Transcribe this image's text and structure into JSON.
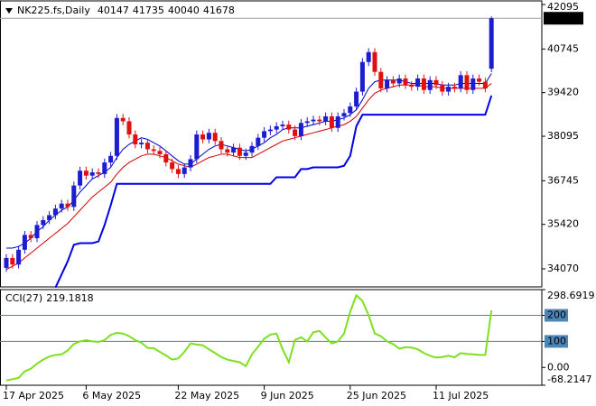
{
  "chart_data": [
    {
      "type": "candlestick",
      "title": "NK225.fs,Daily",
      "categories": [
        "17 Apr 2025",
        null,
        null,
        null,
        null,
        null,
        null,
        null,
        null,
        null,
        null,
        null,
        null,
        "6 May 2025",
        null,
        null,
        null,
        null,
        null,
        null,
        null,
        null,
        null,
        null,
        null,
        null,
        null,
        null,
        "22 May 2025",
        null,
        null,
        null,
        null,
        null,
        null,
        null,
        null,
        null,
        null,
        null,
        null,
        null,
        "9 Jun 2025",
        null,
        null,
        null,
        null,
        null,
        null,
        null,
        null,
        null,
        null,
        null,
        null,
        null,
        "25 Jun 2025",
        null,
        null,
        null,
        null,
        null,
        null,
        null,
        null,
        null,
        null,
        null,
        null,
        null,
        "11 Jul 2025",
        null,
        null,
        null,
        null,
        null,
        null,
        null,
        null,
        null
      ],
      "ohlc": [
        [
          34100,
          34520,
          33980,
          34400
        ],
        [
          34400,
          34520,
          34080,
          34200
        ],
        [
          34200,
          34770,
          34080,
          34650
        ],
        [
          34650,
          35220,
          34530,
          35100
        ],
        [
          35100,
          35220,
          34880,
          35000
        ],
        [
          35000,
          35520,
          34880,
          35400
        ],
        [
          35400,
          35670,
          35280,
          35550
        ],
        [
          35550,
          35820,
          35430,
          35700
        ],
        [
          35700,
          36020,
          35580,
          35900
        ],
        [
          35900,
          36170,
          35780,
          36050
        ],
        [
          36050,
          36170,
          35830,
          35950
        ],
        [
          35950,
          36720,
          35830,
          36600
        ],
        [
          36600,
          37170,
          36480,
          37050
        ],
        [
          37050,
          37170,
          36780,
          36900
        ],
        [
          36900,
          37120,
          36780,
          37000
        ],
        [
          37000,
          37120,
          36830,
          36950
        ],
        [
          36950,
          37420,
          36830,
          37300
        ],
        [
          37300,
          37620,
          37180,
          37500
        ],
        [
          37500,
          38770,
          37380,
          38650
        ],
        [
          38650,
          38770,
          38430,
          38550
        ],
        [
          38550,
          38670,
          38030,
          38150
        ],
        [
          38150,
          38270,
          37730,
          37850
        ],
        [
          37850,
          38020,
          37730,
          37900
        ],
        [
          37900,
          38020,
          37580,
          37700
        ],
        [
          37700,
          37820,
          37530,
          37650
        ],
        [
          37650,
          37770,
          37430,
          37550
        ],
        [
          37550,
          37670,
          37180,
          37300
        ],
        [
          37300,
          37420,
          36980,
          37100
        ],
        [
          37100,
          37220,
          36830,
          36950
        ],
        [
          36950,
          37270,
          36830,
          37150
        ],
        [
          37150,
          37520,
          37030,
          37400
        ],
        [
          37400,
          38270,
          37280,
          38150
        ],
        [
          38150,
          38270,
          37880,
          38000
        ],
        [
          38000,
          38320,
          37880,
          38200
        ],
        [
          38200,
          38320,
          37830,
          37950
        ],
        [
          37950,
          38070,
          37580,
          37700
        ],
        [
          37700,
          37820,
          37480,
          37600
        ],
        [
          37600,
          37870,
          37480,
          37750
        ],
        [
          37750,
          37870,
          37380,
          37500
        ],
        [
          37500,
          37720,
          37380,
          37600
        ],
        [
          37600,
          37920,
          37480,
          37800
        ],
        [
          37800,
          38170,
          37680,
          38050
        ],
        [
          38050,
          38370,
          37930,
          38250
        ],
        [
          38250,
          38420,
          38130,
          38300
        ],
        [
          38300,
          38520,
          38180,
          38400
        ],
        [
          38400,
          38570,
          38280,
          38450
        ],
        [
          38450,
          38570,
          38180,
          38300
        ],
        [
          38300,
          38420,
          37980,
          38100
        ],
        [
          38100,
          38620,
          37980,
          38500
        ],
        [
          38500,
          38670,
          38380,
          38550
        ],
        [
          38550,
          38720,
          38430,
          38600
        ],
        [
          38600,
          38720,
          38430,
          38550
        ],
        [
          38550,
          38820,
          38430,
          38700
        ],
        [
          38700,
          38820,
          38230,
          38350
        ],
        [
          38350,
          38820,
          38230,
          38700
        ],
        [
          38700,
          38920,
          38580,
          38800
        ],
        [
          38800,
          39120,
          38680,
          39000
        ],
        [
          39000,
          39570,
          38880,
          39450
        ],
        [
          39450,
          40470,
          39330,
          40350
        ],
        [
          40350,
          40770,
          40230,
          40650
        ],
        [
          40650,
          40770,
          39930,
          40050
        ],
        [
          40050,
          40170,
          39430,
          39550
        ],
        [
          39550,
          39920,
          39430,
          39800
        ],
        [
          39800,
          39920,
          39580,
          39700
        ],
        [
          39700,
          39970,
          39580,
          39850
        ],
        [
          39850,
          39970,
          39530,
          39650
        ],
        [
          39650,
          39770,
          39480,
          39600
        ],
        [
          39600,
          39970,
          39480,
          39850
        ],
        [
          39850,
          39970,
          39380,
          39500
        ],
        [
          39500,
          39920,
          39380,
          39800
        ],
        [
          39800,
          39920,
          39530,
          39650
        ],
        [
          39650,
          39770,
          39330,
          39450
        ],
        [
          39450,
          39720,
          39330,
          39600
        ],
        [
          39600,
          39720,
          39430,
          39550
        ],
        [
          39550,
          40070,
          39430,
          39950
        ],
        [
          39950,
          40070,
          39380,
          39500
        ],
        [
          39500,
          39970,
          39380,
          39850
        ],
        [
          39850,
          39970,
          39630,
          39750
        ],
        [
          39750,
          39870,
          39430,
          39550
        ],
        [
          40147,
          41735,
          40040,
          41678
        ]
      ],
      "up_color": "#1c1cd0",
      "down_color": "#e01010",
      "series": [
        {
          "color": "#0000c8",
          "width": 1,
          "values": [
            34700,
            34700,
            34750,
            34850,
            35000,
            35200,
            35350,
            35550,
            35700,
            35850,
            35950,
            36150,
            36400,
            36600,
            36800,
            36900,
            37000,
            37150,
            37450,
            37700,
            37850,
            37950,
            38050,
            38000,
            37900,
            37800,
            37650,
            37500,
            37350,
            37250,
            37250,
            37400,
            37550,
            37700,
            37800,
            37850,
            37800,
            37750,
            37700,
            37650,
            37700,
            37800,
            37900,
            38050,
            38150,
            38300,
            38350,
            38350,
            38350,
            38400,
            38450,
            38500,
            38550,
            38550,
            38600,
            38650,
            38750,
            38900,
            39200,
            39550,
            39750,
            39800,
            39800,
            39800,
            39800,
            39750,
            39700,
            39700,
            39700,
            39700,
            39700,
            39650,
            39650,
            39650,
            39700,
            39700,
            39700,
            39700,
            39700,
            40000
          ]
        },
        {
          "color": "#d00000",
          "width": 1,
          "values": [
            34050,
            34150,
            34250,
            34400,
            34550,
            34700,
            34850,
            35000,
            35150,
            35300,
            35450,
            35650,
            35850,
            36050,
            36250,
            36400,
            36550,
            36700,
            36950,
            37150,
            37300,
            37400,
            37500,
            37550,
            37550,
            37500,
            37450,
            37350,
            37250,
            37200,
            37150,
            37250,
            37350,
            37450,
            37500,
            37550,
            37550,
            37500,
            37450,
            37450,
            37450,
            37550,
            37650,
            37750,
            37850,
            37950,
            38000,
            38050,
            38100,
            38150,
            38200,
            38250,
            38300,
            38350,
            38400,
            38450,
            38550,
            38700,
            38950,
            39200,
            39400,
            39500,
            39550,
            39600,
            39650,
            39650,
            39650,
            39650,
            39600,
            39600,
            39600,
            39550,
            39550,
            39550,
            39550,
            39550,
            39550,
            39550,
            39550,
            39700
          ]
        },
        {
          "color": "#0000e6",
          "width": 2,
          "values": [
            null,
            null,
            null,
            null,
            null,
            null,
            null,
            null,
            33500,
            33900,
            34300,
            34800,
            34850,
            34850,
            34850,
            34900,
            35400,
            36000,
            36650,
            36650,
            36650,
            36650,
            36650,
            36650,
            36650,
            36650,
            36650,
            36650,
            36650,
            36650,
            36650,
            36650,
            36650,
            36650,
            36650,
            36650,
            36650,
            36650,
            36650,
            36650,
            36650,
            36650,
            36650,
            36650,
            36850,
            36850,
            36850,
            36850,
            37100,
            37100,
            37150,
            37150,
            37150,
            37150,
            37150,
            37200,
            37500,
            38400,
            38750,
            38750,
            38750,
            38750,
            38750,
            38750,
            38750,
            38750,
            38750,
            38750,
            38750,
            38750,
            38750,
            38750,
            38750,
            38750,
            38750,
            38750,
            38750,
            38750,
            38750,
            39330
          ]
        }
      ],
      "ylim": [
        33522,
        42205
      ],
      "yticks": [
        42095,
        40745,
        39420,
        38095,
        36745,
        35420,
        34070
      ],
      "bid_line": true
    },
    {
      "type": "line",
      "title": "CCI(27)",
      "series": [
        {
          "color": "#7ee020",
          "width": 2,
          "values": [
            -50,
            -45,
            -40,
            -15,
            -5,
            15,
            30,
            42,
            48,
            50,
            65,
            90,
            100,
            105,
            100,
            98,
            105,
            125,
            133,
            130,
            120,
            105,
            95,
            75,
            74,
            60,
            46,
            30,
            35,
            60,
            92,
            88,
            85,
            70,
            55,
            40,
            30,
            25,
            20,
            5,
            50,
            80,
            110,
            126,
            130,
            70,
            20,
            105,
            116,
            100,
            135,
            140,
            115,
            92,
            100,
            130,
            214,
            277,
            255,
            200,
            130,
            120,
            100,
            90,
            72,
            78,
            76,
            70,
            55,
            45,
            38,
            40,
            45,
            39,
            55,
            52,
            50,
            48,
            48,
            219.1818
          ]
        }
      ],
      "ylim": [
        -68.2147,
        298.6919
      ],
      "yticks": [
        298.6919,
        200,
        100,
        {
          "value": 0,
          "label": "0.00"
        },
        -68.2147
      ],
      "levels": [
        200,
        100
      ],
      "level_color": "#4a86b8"
    }
  ]
}
